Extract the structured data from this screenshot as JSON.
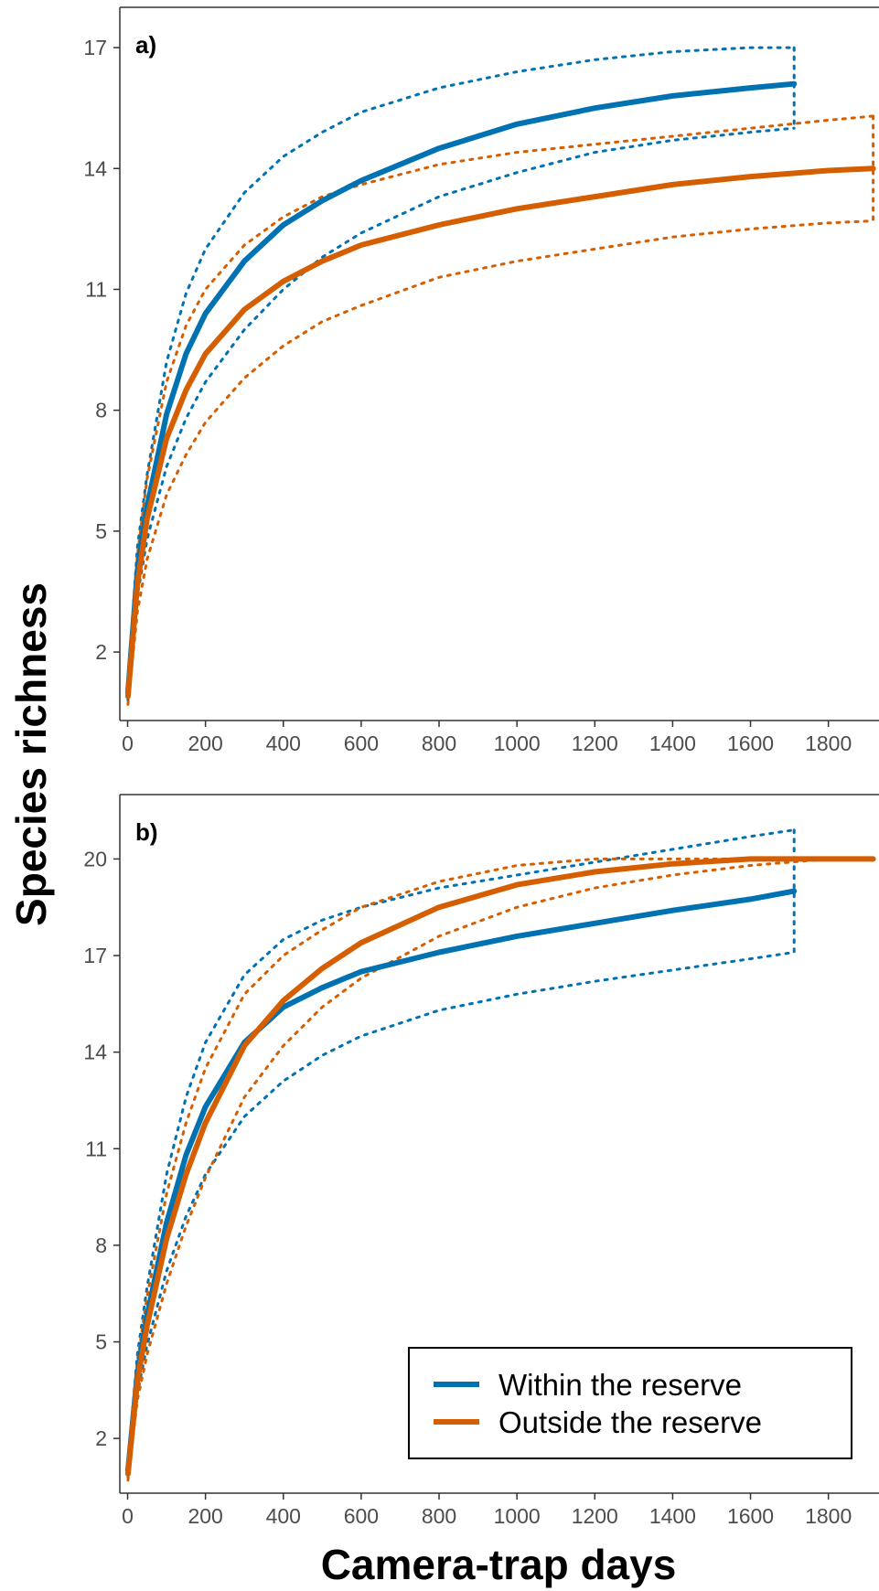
{
  "colors": {
    "within": "#0072B2",
    "outside": "#D55E00",
    "axis": "#333333",
    "tick_text": "#4d4d4d"
  },
  "shared_axes": {
    "xlabel": "Camera-trap days",
    "ylabel": "Species richness",
    "xticks": [
      0,
      200,
      400,
      600,
      800,
      1000,
      1200,
      1400,
      1600,
      1800
    ]
  },
  "legend": {
    "placement": "bottom-right of panel b",
    "entries": [
      {
        "label": "Within the reserve",
        "color": "#0072B2"
      },
      {
        "label": "Outside the reserve",
        "color": "#D55E00"
      }
    ]
  },
  "chart_data": [
    {
      "type": "line",
      "panel_label": "a)",
      "xlim": [
        -20,
        1930
      ],
      "ylim": [
        0.3,
        18
      ],
      "yticks": [
        2,
        5,
        8,
        11,
        14,
        17
      ],
      "grid": false,
      "series": [
        {
          "name": "Within the reserve",
          "style": "solid",
          "color": "#0072B2",
          "x": [
            1,
            25,
            50,
            100,
            150,
            200,
            300,
            400,
            500,
            600,
            800,
            1000,
            1200,
            1400,
            1600,
            1712
          ],
          "y": [
            1.0,
            4.0,
            5.6,
            7.9,
            9.4,
            10.4,
            11.7,
            12.6,
            13.2,
            13.7,
            14.5,
            15.1,
            15.5,
            15.8,
            16.0,
            16.1
          ],
          "lower": [
            0.8,
            3.4,
            4.8,
            6.6,
            7.8,
            8.7,
            10.0,
            11.0,
            11.8,
            12.4,
            13.3,
            13.9,
            14.4,
            14.7,
            14.9,
            15.0
          ],
          "upper": [
            1.2,
            4.6,
            6.4,
            9.2,
            10.9,
            12.0,
            13.4,
            14.3,
            14.9,
            15.4,
            16.0,
            16.4,
            16.7,
            16.9,
            17.0,
            17.0
          ]
        },
        {
          "name": "Outside the reserve",
          "style": "solid",
          "color": "#D55E00",
          "x": [
            1,
            25,
            50,
            100,
            150,
            200,
            300,
            400,
            500,
            600,
            800,
            1000,
            1200,
            1400,
            1600,
            1800,
            1915
          ],
          "y": [
            0.9,
            3.7,
            5.3,
            7.3,
            8.5,
            9.4,
            10.5,
            11.2,
            11.7,
            12.1,
            12.6,
            13.0,
            13.3,
            13.6,
            13.8,
            13.95,
            14.0
          ],
          "lower": [
            0.7,
            3.0,
            4.3,
            5.9,
            6.9,
            7.7,
            8.8,
            9.6,
            10.2,
            10.6,
            11.3,
            11.7,
            12.0,
            12.3,
            12.5,
            12.65,
            12.7
          ],
          "upper": [
            1.1,
            4.4,
            6.3,
            8.7,
            10.1,
            11.0,
            12.1,
            12.8,
            13.3,
            13.6,
            14.1,
            14.4,
            14.6,
            14.8,
            15.0,
            15.2,
            15.3
          ]
        }
      ]
    },
    {
      "type": "line",
      "panel_label": "b)",
      "xlim": [
        -20,
        1930
      ],
      "ylim": [
        0.3,
        22
      ],
      "yticks": [
        2,
        5,
        8,
        11,
        14,
        17,
        20
      ],
      "grid": false,
      "series": [
        {
          "name": "Within the reserve",
          "style": "solid",
          "color": "#0072B2",
          "x": [
            1,
            25,
            50,
            100,
            150,
            200,
            300,
            400,
            500,
            600,
            800,
            1000,
            1200,
            1400,
            1600,
            1712
          ],
          "y": [
            1.0,
            4.0,
            5.8,
            8.7,
            10.8,
            12.3,
            14.3,
            15.4,
            16.0,
            16.5,
            17.1,
            17.6,
            18.0,
            18.4,
            18.75,
            19.0
          ],
          "lower": [
            0.8,
            3.4,
            4.9,
            7.2,
            8.9,
            10.2,
            12.0,
            13.1,
            13.9,
            14.5,
            15.3,
            15.8,
            16.2,
            16.55,
            16.9,
            17.1
          ],
          "upper": [
            1.2,
            4.6,
            6.7,
            10.2,
            12.6,
            14.3,
            16.4,
            17.5,
            18.1,
            18.5,
            19.1,
            19.5,
            19.9,
            20.3,
            20.7,
            20.9
          ]
        },
        {
          "name": "Outside the reserve",
          "style": "solid",
          "color": "#D55E00",
          "x": [
            1,
            25,
            50,
            100,
            150,
            200,
            300,
            400,
            500,
            600,
            800,
            1000,
            1200,
            1400,
            1600,
            1800,
            1915
          ],
          "y": [
            0.9,
            3.8,
            5.5,
            8.2,
            10.2,
            11.8,
            14.2,
            15.6,
            16.6,
            17.4,
            18.5,
            19.2,
            19.6,
            19.85,
            20.0,
            20.0,
            20.0
          ],
          "lower": [
            0.7,
            3.2,
            4.6,
            6.8,
            8.6,
            10.1,
            12.6,
            14.2,
            15.4,
            16.3,
            17.6,
            18.5,
            19.1,
            19.5,
            19.8,
            20.0,
            20.0
          ],
          "upper": [
            1.1,
            4.4,
            6.4,
            9.6,
            11.8,
            13.5,
            15.8,
            17.0,
            17.8,
            18.5,
            19.3,
            19.8,
            20.0,
            20.0,
            20.0,
            20.0,
            20.0
          ]
        }
      ]
    }
  ]
}
